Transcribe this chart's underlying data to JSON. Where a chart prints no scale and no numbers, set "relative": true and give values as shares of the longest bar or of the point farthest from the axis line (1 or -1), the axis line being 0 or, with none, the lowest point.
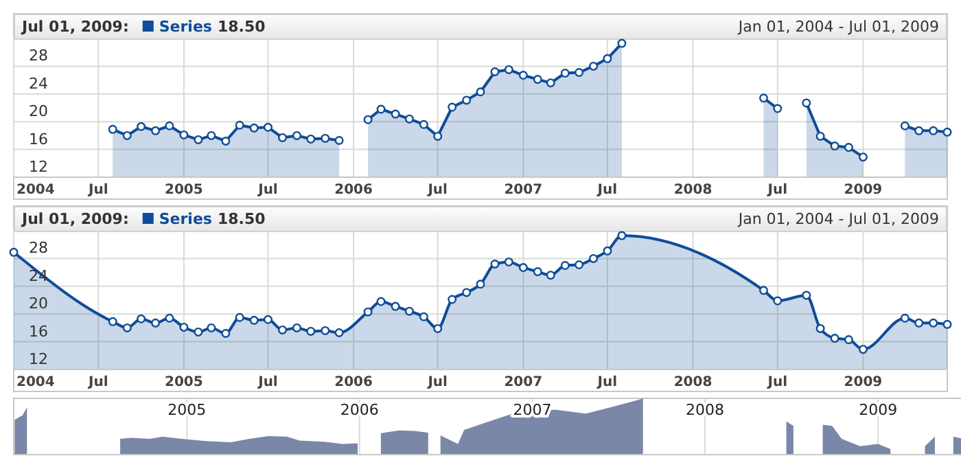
{
  "chart_data": [
    {
      "type": "area",
      "title": "Jul 01, 2009:",
      "subtitle": "Jan 01, 2004 - Jul 01, 2009",
      "annotations": [
        "18.50"
      ],
      "legend": "top left",
      "marker": "circle",
      "grid": true,
      "xlim": [
        "2004-01-01",
        "2009-07-01"
      ],
      "xticks": [
        {
          "value": "2004-01-01",
          "label": "2004"
        },
        {
          "value": "2004-07-01",
          "label": "Jul"
        },
        {
          "value": "2005-01-01",
          "label": "2005"
        },
        {
          "value": "2005-07-01",
          "label": "Jul"
        },
        {
          "value": "2006-01-01",
          "label": "2006"
        },
        {
          "value": "2006-07-01",
          "label": "Jul"
        },
        {
          "value": "2007-01-01",
          "label": "2007"
        },
        {
          "value": "2007-07-01",
          "label": "Jul"
        },
        {
          "value": "2008-01-01",
          "label": "2008"
        },
        {
          "value": "2008-07-01",
          "label": "Jul"
        },
        {
          "value": "2009-01-01",
          "label": "2009"
        }
      ],
      "ylim": [
        12,
        32
      ],
      "yticks": [
        12,
        16,
        20,
        24,
        28
      ],
      "series": [
        {
          "name": "Series",
          "color": "#0f4c99",
          "x": [
            "2004-08",
            "2004-09",
            "2004-10",
            "2004-11",
            "2004-12",
            "2005-01",
            "2005-02",
            "2005-03",
            "2005-04",
            "2005-05",
            "2005-06",
            "2005-07",
            "2005-08",
            "2005-09",
            "2005-10",
            "2005-11",
            "2005-12",
            "2006-01",
            "2006-02",
            "2006-03",
            "2006-04",
            "2006-05",
            "2006-06",
            "2006-07",
            "2006-08",
            "2006-09",
            "2006-10",
            "2006-11",
            "2006-12",
            "2007-01",
            "2007-02",
            "2007-03",
            "2007-04",
            "2007-05",
            "2007-06",
            "2007-07",
            "2007-08",
            "2007-09",
            "2008-06",
            "2008-07",
            "2008-08",
            "2008-09",
            "2008-10",
            "2008-11",
            "2008-12",
            "2009-01",
            "2009-02",
            "2009-04",
            "2009-05",
            "2009-06",
            "2009-07"
          ],
          "values": [
            18.9,
            18.0,
            19.3,
            18.7,
            19.4,
            18.1,
            17.4,
            18.0,
            17.2,
            19.5,
            19.1,
            19.2,
            17.7,
            18.0,
            17.5,
            17.6,
            17.3,
            null,
            20.3,
            21.8,
            21.1,
            20.4,
            19.6,
            17.9,
            22.1,
            23.1,
            24.3,
            27.2,
            27.5,
            26.7,
            26.1,
            25.6,
            27.0,
            27.1,
            28.0,
            29.1,
            31.3,
            null,
            23.4,
            21.9,
            null,
            22.7,
            17.9,
            16.5,
            16.3,
            14.9,
            null,
            19.4,
            18.7,
            18.7,
            18.5
          ]
        }
      ]
    },
    {
      "type": "area",
      "title": "Jul 01, 2009:",
      "subtitle": "Jan 01, 2004 - Jul 01, 2009",
      "annotations": [
        "18.50"
      ],
      "legend": "top left",
      "marker": "circle",
      "grid": true,
      "xlim": [
        "2004-01-01",
        "2009-07-01"
      ],
      "xticks": [
        {
          "value": "2004-01-01",
          "label": "2004"
        },
        {
          "value": "2004-07-01",
          "label": "Jul"
        },
        {
          "value": "2005-01-01",
          "label": "2005"
        },
        {
          "value": "2005-07-01",
          "label": "Jul"
        },
        {
          "value": "2006-01-01",
          "label": "2006"
        },
        {
          "value": "2006-07-01",
          "label": "Jul"
        },
        {
          "value": "2007-01-01",
          "label": "2007"
        },
        {
          "value": "2007-07-01",
          "label": "Jul"
        },
        {
          "value": "2008-01-01",
          "label": "2008"
        },
        {
          "value": "2008-07-01",
          "label": "Jul"
        },
        {
          "value": "2009-01-01",
          "label": "2009"
        }
      ],
      "ylim": [
        12,
        32
      ],
      "yticks": [
        12,
        16,
        20,
        24,
        28
      ],
      "series": [
        {
          "name": "Series",
          "color": "#0f4c99",
          "x": [
            "2004-01",
            "2004-08",
            "2004-09",
            "2004-10",
            "2004-11",
            "2004-12",
            "2005-01",
            "2005-02",
            "2005-03",
            "2005-04",
            "2005-05",
            "2005-06",
            "2005-07",
            "2005-08",
            "2005-09",
            "2005-10",
            "2005-11",
            "2005-12",
            "2006-02",
            "2006-03",
            "2006-04",
            "2006-05",
            "2006-06",
            "2006-07",
            "2006-08",
            "2006-09",
            "2006-10",
            "2006-11",
            "2006-12",
            "2007-01",
            "2007-02",
            "2007-03",
            "2007-04",
            "2007-05",
            "2007-06",
            "2007-07",
            "2007-08",
            "2008-06",
            "2008-07",
            "2008-09",
            "2008-10",
            "2008-11",
            "2008-12",
            "2009-01",
            "2009-04",
            "2009-05",
            "2009-06",
            "2009-07"
          ],
          "values": [
            28.9,
            18.9,
            18.0,
            19.3,
            18.7,
            19.4,
            18.1,
            17.4,
            18.0,
            17.2,
            19.5,
            19.1,
            19.2,
            17.7,
            18.0,
            17.5,
            17.6,
            17.3,
            20.3,
            21.8,
            21.1,
            20.4,
            19.6,
            17.9,
            22.1,
            23.1,
            24.3,
            27.2,
            27.5,
            26.7,
            26.1,
            25.6,
            27.0,
            27.1,
            28.0,
            29.1,
            31.3,
            23.4,
            21.9,
            22.7,
            17.9,
            16.5,
            16.3,
            14.9,
            19.4,
            18.7,
            18.7,
            18.5
          ]
        }
      ]
    },
    {
      "type": "area",
      "relative": true,
      "grid": "x",
      "tick_labels": "x",
      "xlim": [
        "2004-01-01",
        "2009-07-01"
      ],
      "xticks": [
        {
          "value": "2005-01-01",
          "label": "2005"
        },
        {
          "value": "2006-01-01",
          "label": "2006"
        },
        {
          "value": "2007-01-01",
          "label": "2007"
        },
        {
          "value": "2008-01-01",
          "label": "2008"
        },
        {
          "value": "2009-01-01",
          "label": "2009"
        }
      ],
      "series": [
        {
          "color": "#7b87a8",
          "x": [
            "2004-01-03",
            "2004-01-20",
            "2004-01-29",
            "2004-05-01",
            "2004-08-13",
            "2004-09-05",
            "2004-10-15",
            "2004-11-10",
            "2005-01-01",
            "2005-02-10",
            "2005-04-04",
            "2005-05-13",
            "2005-06-22",
            "2005-07-31",
            "2005-08-27",
            "2005-10-19",
            "2005-11-27",
            "2005-12-28",
            "2006-01-20",
            "2006-02-15",
            "2006-03-25",
            "2006-04-27",
            "2006-05-26",
            "2006-06-08",
            "2006-06-21",
            "2006-07-28",
            "2006-08-10",
            "2006-09-25",
            "2006-11-17",
            "2007-01-01",
            "2007-02-18",
            "2007-04-24",
            "2007-06-16",
            "2007-08-08",
            "2007-08-23",
            "2008-01-01",
            "2008-06-21",
            "2008-07-06",
            "2008-08-10",
            "2008-09-06",
            "2008-09-26",
            "2008-10-16",
            "2008-11-24",
            "2009-01-01",
            "2009-01-27",
            "2009-03-01",
            "2009-04-10",
            "2009-05-01",
            "2009-05-20",
            "2009-06-09",
            "2009-07-01"
          ],
          "values": [
            0.62,
            0.7,
            0.84,
            null,
            0.28,
            0.3,
            0.28,
            0.32,
            0.27,
            0.24,
            0.22,
            0.28,
            0.33,
            0.32,
            0.25,
            0.23,
            0.19,
            0.2,
            null,
            0.38,
            0.43,
            0.42,
            0.39,
            null,
            0.34,
            0.19,
            0.44,
            0.57,
            0.72,
            0.76,
            0.8,
            0.73,
            0.84,
            0.96,
            1.0,
            null,
            0.59,
            0.51,
            null,
            0.53,
            0.51,
            0.28,
            0.15,
            0.19,
            0.1,
            null,
            0.15,
            0.32,
            null,
            0.32,
            0.28
          ]
        }
      ]
    }
  ]
}
